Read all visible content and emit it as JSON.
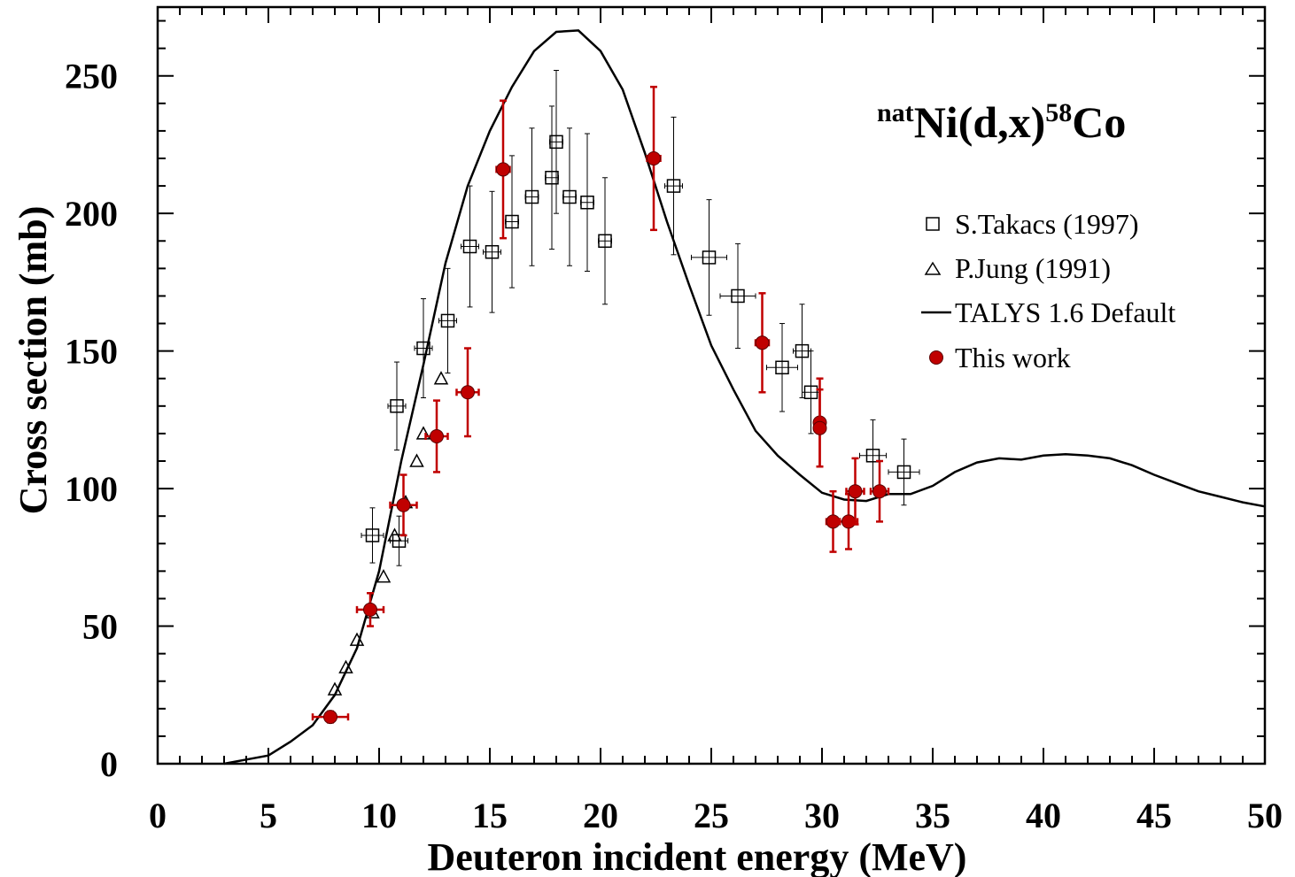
{
  "chart_data": {
    "type": "scatter",
    "title_parts": [
      "nat",
      "Ni(d,x)",
      "58",
      "Co"
    ],
    "xlabel": "Deuteron incident energy (MeV)",
    "ylabel": "Cross section (mb)",
    "xlim": [
      0,
      50
    ],
    "ylim": [
      0,
      275
    ],
    "xticks": [
      0,
      5,
      10,
      15,
      20,
      25,
      30,
      35,
      40,
      45,
      50
    ],
    "xtick_labels": [
      "0",
      "5",
      "10",
      "15",
      "20",
      "25",
      "30",
      "35",
      "40",
      "45",
      "50"
    ],
    "yticks": [
      0,
      50,
      100,
      150,
      200,
      250
    ],
    "ytick_labels": [
      "0",
      "50",
      "100",
      "150",
      "200",
      "250"
    ],
    "legend_position": "right",
    "colors": {
      "axis": "#000000",
      "this_work": "#c00000",
      "this_work_edge": "#5a0000",
      "takacs": "#000000",
      "jung": "#000000",
      "talys": "#000000"
    },
    "series": [
      {
        "name": "S.Takacs (1997)",
        "marker": "open-square",
        "points": [
          {
            "x": 9.7,
            "y": 83,
            "xerr": 0.5,
            "yerr": 10
          },
          {
            "x": 10.8,
            "y": 130,
            "xerr": 0.4,
            "yerr": 16
          },
          {
            "x": 10.9,
            "y": 81,
            "xerr": 0.4,
            "yerr": 9
          },
          {
            "x": 12.0,
            "y": 151,
            "xerr": 0.4,
            "yerr": 18
          },
          {
            "x": 13.1,
            "y": 161,
            "xerr": 0.4,
            "yerr": 19
          },
          {
            "x": 14.1,
            "y": 188,
            "xerr": 0.4,
            "yerr": 22
          },
          {
            "x": 15.1,
            "y": 186,
            "xerr": 0.4,
            "yerr": 22
          },
          {
            "x": 16.0,
            "y": 197,
            "xerr": 0.3,
            "yerr": 24
          },
          {
            "x": 16.9,
            "y": 206,
            "xerr": 0.3,
            "yerr": 25
          },
          {
            "x": 17.8,
            "y": 213,
            "xerr": 0.3,
            "yerr": 26
          },
          {
            "x": 18.0,
            "y": 226,
            "xerr": 0.3,
            "yerr": 26
          },
          {
            "x": 18.6,
            "y": 206,
            "xerr": 0.3,
            "yerr": 25
          },
          {
            "x": 19.4,
            "y": 204,
            "xerr": 0.3,
            "yerr": 25
          },
          {
            "x": 20.2,
            "y": 190,
            "xerr": 0.3,
            "yerr": 23
          },
          {
            "x": 23.3,
            "y": 210,
            "xerr": 0.4,
            "yerr": 25
          },
          {
            "x": 24.9,
            "y": 184,
            "xerr": 0.8,
            "yerr": 21
          },
          {
            "x": 26.2,
            "y": 170,
            "xerr": 0.8,
            "yerr": 19
          },
          {
            "x": 28.2,
            "y": 144,
            "xerr": 0.7,
            "yerr": 16
          },
          {
            "x": 29.1,
            "y": 150,
            "xerr": 0.4,
            "yerr": 17
          },
          {
            "x": 29.5,
            "y": 135,
            "xerr": 0.4,
            "yerr": 15
          },
          {
            "x": 32.3,
            "y": 112,
            "xerr": 0.6,
            "yerr": 13
          },
          {
            "x": 33.7,
            "y": 106,
            "xerr": 0.7,
            "yerr": 12
          }
        ]
      },
      {
        "name": "P.Jung (1991)",
        "marker": "open-triangle",
        "points": [
          {
            "x": 8.0,
            "y": 27
          },
          {
            "x": 8.5,
            "y": 35
          },
          {
            "x": 9.0,
            "y": 45
          },
          {
            "x": 9.7,
            "y": 55
          },
          {
            "x": 10.2,
            "y": 68
          },
          {
            "x": 10.7,
            "y": 83
          },
          {
            "x": 11.2,
            "y": 95
          },
          {
            "x": 11.7,
            "y": 110
          },
          {
            "x": 12.0,
            "y": 120
          },
          {
            "x": 12.8,
            "y": 140
          }
        ]
      },
      {
        "name": "TALYS 1.6 Default",
        "marker": "line",
        "points": [
          {
            "x": 3.0,
            "y": 0
          },
          {
            "x": 4.0,
            "y": 1.5
          },
          {
            "x": 5.0,
            "y": 3
          },
          {
            "x": 6.0,
            "y": 8
          },
          {
            "x": 7.0,
            "y": 14
          },
          {
            "x": 8.0,
            "y": 25
          },
          {
            "x": 9.0,
            "y": 42
          },
          {
            "x": 10.0,
            "y": 70
          },
          {
            "x": 11.0,
            "y": 110
          },
          {
            "x": 12.0,
            "y": 145
          },
          {
            "x": 13.0,
            "y": 182
          },
          {
            "x": 14.0,
            "y": 210
          },
          {
            "x": 15.0,
            "y": 230
          },
          {
            "x": 16.0,
            "y": 246
          },
          {
            "x": 17.0,
            "y": 259
          },
          {
            "x": 18.0,
            "y": 266
          },
          {
            "x": 19.0,
            "y": 266.5
          },
          {
            "x": 20.0,
            "y": 259
          },
          {
            "x": 21.0,
            "y": 245
          },
          {
            "x": 22.0,
            "y": 222
          },
          {
            "x": 23.0,
            "y": 197
          },
          {
            "x": 24.0,
            "y": 174
          },
          {
            "x": 25.0,
            "y": 152
          },
          {
            "x": 26.0,
            "y": 136
          },
          {
            "x": 27.0,
            "y": 121
          },
          {
            "x": 28.0,
            "y": 112
          },
          {
            "x": 29.0,
            "y": 105
          },
          {
            "x": 30.0,
            "y": 98.5
          },
          {
            "x": 31.0,
            "y": 96
          },
          {
            "x": 32.0,
            "y": 95.5
          },
          {
            "x": 33.0,
            "y": 98
          },
          {
            "x": 34.0,
            "y": 98
          },
          {
            "x": 35.0,
            "y": 101
          },
          {
            "x": 36.0,
            "y": 106
          },
          {
            "x": 37.0,
            "y": 109.5
          },
          {
            "x": 38.0,
            "y": 111
          },
          {
            "x": 39.0,
            "y": 110.5
          },
          {
            "x": 40.0,
            "y": 112
          },
          {
            "x": 41.0,
            "y": 112.5
          },
          {
            "x": 42.0,
            "y": 112
          },
          {
            "x": 43.0,
            "y": 111
          },
          {
            "x": 44.0,
            "y": 108.5
          },
          {
            "x": 45.0,
            "y": 105
          },
          {
            "x": 46.0,
            "y": 102
          },
          {
            "x": 47.0,
            "y": 99
          },
          {
            "x": 48.0,
            "y": 97
          },
          {
            "x": 49.0,
            "y": 95
          },
          {
            "x": 50.0,
            "y": 93.5
          }
        ]
      },
      {
        "name": "This work",
        "marker": "filled-circle",
        "points": [
          {
            "x": 7.8,
            "y": 17,
            "xerr": 0.8,
            "yerr": 2
          },
          {
            "x": 9.6,
            "y": 56,
            "xerr": 0.6,
            "yerr": 6
          },
          {
            "x": 11.1,
            "y": 94,
            "xerr": 0.6,
            "yerr": 11
          },
          {
            "x": 12.6,
            "y": 119,
            "xerr": 0.5,
            "yerr": 13
          },
          {
            "x": 14.0,
            "y": 135,
            "xerr": 0.5,
            "yerr": 16
          },
          {
            "x": 15.6,
            "y": 216,
            "xerr": 0.3,
            "yerr": 25
          },
          {
            "x": 22.4,
            "y": 220,
            "xerr": 0.3,
            "yerr": 26
          },
          {
            "x": 27.3,
            "y": 153,
            "xerr": 0.3,
            "yerr": 18
          },
          {
            "x": 29.9,
            "y": 124,
            "xerr": 0.2,
            "yerr": 16
          },
          {
            "x": 29.9,
            "y": 122,
            "xerr": 0.2,
            "yerr": 14
          },
          {
            "x": 30.5,
            "y": 88,
            "xerr": 0.3,
            "yerr": 11
          },
          {
            "x": 31.2,
            "y": 88,
            "xerr": 0.4,
            "yerr": 10
          },
          {
            "x": 31.5,
            "y": 99,
            "xerr": 0.4,
            "yerr": 12
          },
          {
            "x": 32.6,
            "y": 99,
            "xerr": 0.4,
            "yerr": 11
          }
        ]
      }
    ]
  }
}
